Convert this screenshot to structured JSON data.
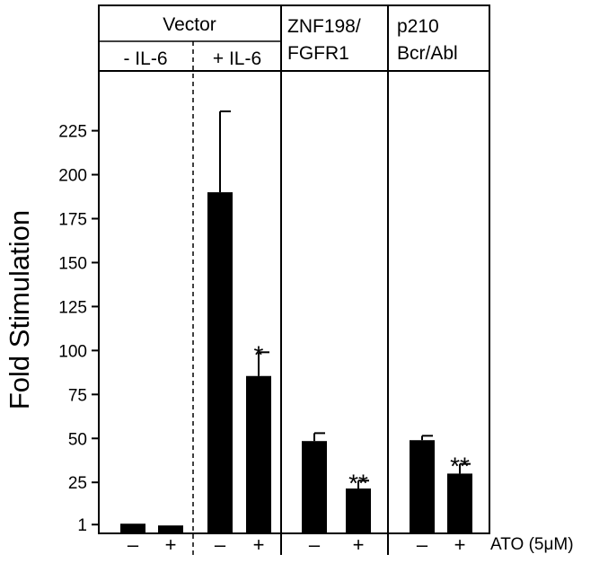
{
  "chart_data": {
    "type": "bar",
    "ylabel": "Fold Stimulation",
    "yticks": [
      "1",
      "25",
      "50",
      "75",
      "100",
      "125",
      "150",
      "175",
      "200",
      "225"
    ],
    "ytick_values": [
      1,
      25,
      50,
      75,
      100,
      125,
      150,
      175,
      200,
      225
    ],
    "ylim": [
      -4,
      259
    ],
    "groups": [
      {
        "label": "Vector",
        "subgroups": [
          "- IL-6",
          "+ IL-6"
        ]
      },
      {
        "label_lines": [
          "ZNF198/",
          "FGFR1"
        ]
      },
      {
        "label_lines": [
          "p210",
          "Bcr/Abl"
        ]
      }
    ],
    "treatment_label": "ATO (5μM)",
    "bars": [
      {
        "ato": "–",
        "value": 1.5,
        "error": 0
      },
      {
        "ato": "+",
        "value": 0.5,
        "error": 0
      },
      {
        "ato": "–",
        "value": 190,
        "error": 46
      },
      {
        "ato": "+",
        "value": 85.5,
        "error": 13.5,
        "annotation": "*"
      },
      {
        "ato": "–",
        "value": 48.5,
        "error": 4.5
      },
      {
        "ato": "+",
        "value": 21.5,
        "error": 4.5,
        "annotation": "**"
      },
      {
        "ato": "–",
        "value": 49,
        "error": 2.5
      },
      {
        "ato": "+",
        "value": 30,
        "error": 5.5,
        "annotation": "**"
      }
    ],
    "bar_color": "#000000"
  }
}
